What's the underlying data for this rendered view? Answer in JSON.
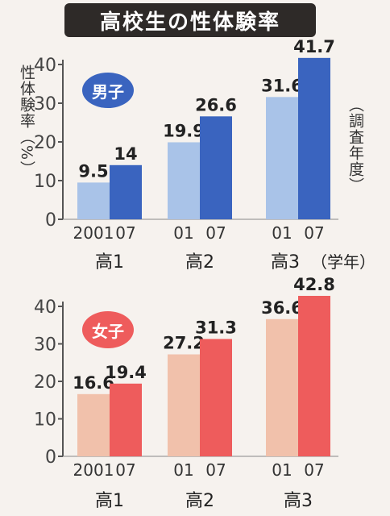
{
  "title": "高校生の性体験率",
  "ylabel": "性体験率（%）",
  "year_label": "（調査年度）",
  "unit_suffix": "（学年）",
  "colors": {
    "male_2001": "#a9c3e8",
    "male_2007": "#3a64bf",
    "female_2001": "#f1c1ab",
    "female_2007": "#ee5c5c",
    "title_bg": "#2e2a28"
  },
  "chart_data": [
    {
      "type": "bar",
      "badge": "男子",
      "categories": [
        "高1",
        "高2",
        "高3"
      ],
      "x_tick_labels": [
        [
          "2001",
          "07"
        ],
        [
          "01",
          "07"
        ],
        [
          "01",
          "07"
        ]
      ],
      "series": [
        {
          "name": "2001",
          "values": [
            9.5,
            19.9,
            31.6
          ]
        },
        {
          "name": "07",
          "values": [
            14,
            26.6,
            41.7
          ]
        }
      ],
      "value_labels": [
        [
          "9.5",
          "14"
        ],
        [
          "19.9",
          "26.6"
        ],
        [
          "31.6",
          "41.7"
        ]
      ],
      "yticks": [
        "0",
        "10",
        "20",
        "30",
        "40"
      ],
      "ylim": [
        0,
        40
      ]
    },
    {
      "type": "bar",
      "badge": "女子",
      "categories": [
        "高1",
        "高2",
        "高3"
      ],
      "x_tick_labels": [
        [
          "2001",
          "07"
        ],
        [
          "01",
          "07"
        ],
        [
          "01",
          "07"
        ]
      ],
      "series": [
        {
          "name": "2001",
          "values": [
            16.6,
            27.2,
            36.6
          ]
        },
        {
          "name": "07",
          "values": [
            19.4,
            31.3,
            42.8
          ]
        }
      ],
      "value_labels": [
        [
          "16.6",
          "19.4"
        ],
        [
          "27.2",
          "31.3"
        ],
        [
          "36.6",
          "42.8"
        ]
      ],
      "yticks": [
        "0",
        "10",
        "20",
        "30",
        "40"
      ],
      "ylim": [
        0,
        40
      ]
    }
  ]
}
